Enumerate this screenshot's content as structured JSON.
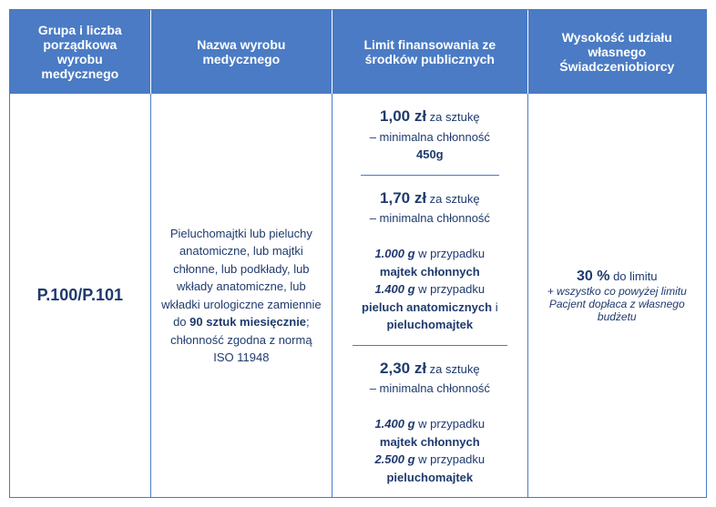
{
  "headers": {
    "col1": "Grupa i liczba porządkowa wyrobu medycznego",
    "col2": "Nazwa wyrobu medycznego",
    "col3": "Limit finansowania ze środków publicznych",
    "col4": "Wysokość udziału własnego Świadczeniobiorcy"
  },
  "body": {
    "code": "P.100/P.101",
    "description": {
      "part1": "Pieluchomajtki lub pieluchy anatomiczne, lub majtki chłonne, lub podkłady, lub wkłady anatomiczne, lub wkładki urologiczne zamiennie do ",
      "bold1": "90 sztuk miesięcznie",
      "part2": "; chłonność zgodna z normą ISO 11948"
    },
    "limits": [
      {
        "price": "1,00 zł",
        "per": " za sztukę",
        "sub": "– minimalna chłonność",
        "weight1": "450g"
      },
      {
        "price": "1,70 zł",
        "per": " za sztukę",
        "sub": "– minimalna chłonność",
        "w1": "1.000 g",
        "t1": " w przypadku ",
        "b1": "majtek chłonnych",
        "w2": "1.400 g",
        "t2": " w przypadku ",
        "b2": "pieluch anatomicznych",
        "t3": " i ",
        "b3": "pieluchomajtek"
      },
      {
        "price": "2,30 zł",
        "per": " za sztukę",
        "sub": "– minimalna chłonność",
        "w1": "1.400 g",
        "t1": " w przypadku ",
        "b1": "majtek chłonnych",
        "w2": "2.500 g",
        "t2": " w przypadku ",
        "b2": "pieluchomajtek"
      }
    ],
    "share": {
      "percent": "30 %",
      "suffix": " do limitu",
      "note": "+ wszystko co powyżej limitu Pacjent dopłaca z własnego budżetu"
    }
  }
}
